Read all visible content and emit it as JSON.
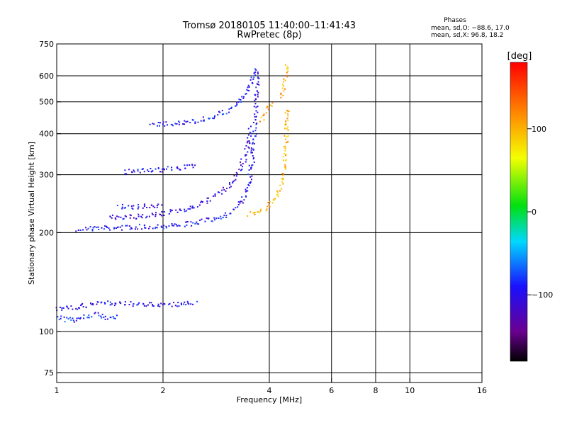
{
  "chart_data": {
    "type": "scatter",
    "title": "Tromsø 20180105 11:40:00–11:41:43",
    "subtitle": "RwPretec (8p)",
    "xlabel": "Frequency [MHz]",
    "ylabel": "Stationary phase Virtual Height [km]",
    "x_scale": "log",
    "y_scale": "log",
    "xlim": [
      1,
      16
    ],
    "ylim": [
      70,
      750
    ],
    "x_ticks": [
      1,
      2,
      4,
      6,
      8,
      10,
      16
    ],
    "y_ticks": [
      75,
      100,
      200,
      300,
      400,
      500,
      600,
      750
    ],
    "x_ticks_labeled": [
      "1",
      "2",
      "4",
      "6",
      "8",
      "10",
      "16"
    ],
    "y_ticks_labeled": [
      "75",
      "100",
      "200",
      "300",
      "400",
      "500",
      "600",
      "750"
    ],
    "grid": true,
    "phase_stats": {
      "header": "Phases",
      "line_o": "mean, sd,O: −88.6, 17.0",
      "line_x": "mean, sd,X:  96.8, 18.2"
    },
    "colorbar": {
      "label": "[deg]",
      "range": [
        -180,
        180
      ],
      "ticks": [
        100,
        0,
        -100
      ],
      "tick_labels": [
        "100",
        "0",
        "−100"
      ],
      "colormap": "rainbow: black → purple → blue → cyan → green → yellow → orange → red"
    },
    "series": [
      {
        "mode": "O",
        "phase_mean": -88.6,
        "traces": [
          {
            "x": [
              1.15,
              1.3,
              1.5,
              1.7,
              1.9,
              2.1,
              2.4,
              2.7,
              3.0,
              3.2,
              3.35,
              3.45,
              3.52,
              3.58,
              3.62,
              3.65,
              3.68,
              3.7
            ],
            "y": [
              205,
              206,
              207,
              208,
              209,
              210,
              213,
              218,
              226,
              236,
              250,
              268,
              295,
              330,
              380,
              440,
              520,
              630
            ],
            "phase": -95
          },
          {
            "x": [
              1.4,
              1.7,
              2.0,
              2.3,
              2.6,
              2.9,
              3.1,
              3.3,
              3.45,
              3.55
            ],
            "y": [
              222,
              224,
              228,
              235,
              246,
              262,
              280,
              310,
              350,
              420
            ],
            "phase": -105
          },
          {
            "x": [
              1.85,
              2.0,
              2.2,
              2.4,
              2.6,
              2.8,
              3.0,
              3.15,
              3.3,
              3.42,
              3.52,
              3.6,
              3.66
            ],
            "y": [
              425,
              427,
              430,
              435,
              442,
              452,
              465,
              480,
              500,
              525,
              560,
              600,
              640
            ],
            "phase": -90
          },
          {
            "x": [
              1.55,
              1.7,
              1.9,
              2.1,
              2.3,
              2.5
            ],
            "y": [
              305,
              308,
              310,
              312,
              316,
              320
            ],
            "phase": -95
          },
          {
            "x": [
              1.5,
              1.6,
              1.75,
              1.9,
              2.0
            ],
            "y": [
              240,
              240,
              240,
              240,
              240
            ],
            "phase": -100
          },
          {
            "x": [
              1.0,
              1.1,
              1.2,
              1.3,
              1.4,
              1.5,
              1.6,
              1.7,
              1.9,
              2.1,
              2.3,
              2.5
            ],
            "y": [
              117,
              118,
              120,
              121,
              122,
              122,
              122,
              121,
              121,
              121,
              121,
              122
            ],
            "phase": -100
          },
          {
            "x": [
              1.0,
              1.1,
              1.2,
              1.3,
              1.4,
              1.5
            ],
            "y": [
              110,
              108,
              111,
              113,
              109,
              112
            ],
            "phase": -85
          }
        ]
      },
      {
        "mode": "X",
        "phase_mean": 96.8,
        "traces": [
          {
            "x": [
              3.5,
              3.7,
              3.9,
              4.05,
              4.2,
              4.3,
              4.38,
              4.43,
              4.47,
              4.5
            ],
            "y": [
              228,
              232,
              238,
              246,
              258,
              275,
              300,
              340,
              400,
              480
            ],
            "phase": 100
          },
          {
            "x": [
              4.35,
              4.4,
              4.45,
              4.48,
              4.5
            ],
            "y": [
              520,
              560,
              600,
              630,
              650
            ],
            "phase": 105
          },
          {
            "x": [
              3.8,
              3.9,
              4.0,
              4.1
            ],
            "y": [
              440,
              460,
              480,
              500
            ],
            "phase": 110
          }
        ]
      }
    ]
  }
}
